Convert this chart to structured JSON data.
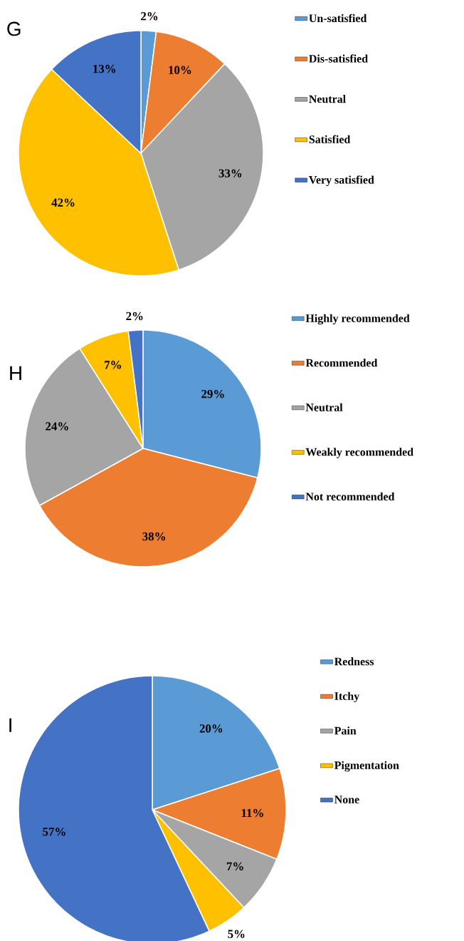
{
  "chart_data": [
    {
      "type": "pie",
      "title": "G",
      "categories": [
        "Un-satisfied",
        "Dis-satisfied",
        "Neutral",
        "Satisfied",
        "Very satisfied"
      ],
      "values": [
        2,
        10,
        33,
        42,
        13
      ],
      "value_labels": [
        "2%",
        "10%",
        "33%",
        "42%",
        "13%"
      ],
      "colors": [
        "#5b9bd5",
        "#ed7d31",
        "#a5a5a5",
        "#ffc000",
        "#4472c4"
      ],
      "legend": "right"
    },
    {
      "type": "pie",
      "title": "H",
      "categories": [
        "Highly recommended",
        "Recommended",
        "Neutral",
        "Weakly recommended",
        "Not recommended"
      ],
      "values": [
        29,
        38,
        24,
        7,
        2
      ],
      "value_labels": [
        "29%",
        "38%",
        "24%",
        "7%",
        "2%"
      ],
      "colors": [
        "#5b9bd5",
        "#ed7d31",
        "#a5a5a5",
        "#ffc000",
        "#4472c4"
      ],
      "legend": "right"
    },
    {
      "type": "pie",
      "title": "I",
      "categories": [
        "Redness",
        "Itchy",
        "Pain",
        "Pigmentation",
        "None"
      ],
      "values": [
        20,
        11,
        7,
        5,
        57
      ],
      "value_labels": [
        "20%",
        "11%",
        "7%",
        "5%",
        "57%"
      ],
      "colors": [
        "#5b9bd5",
        "#ed7d31",
        "#a5a5a5",
        "#ffc000",
        "#4472c4"
      ],
      "legend": "right"
    }
  ]
}
